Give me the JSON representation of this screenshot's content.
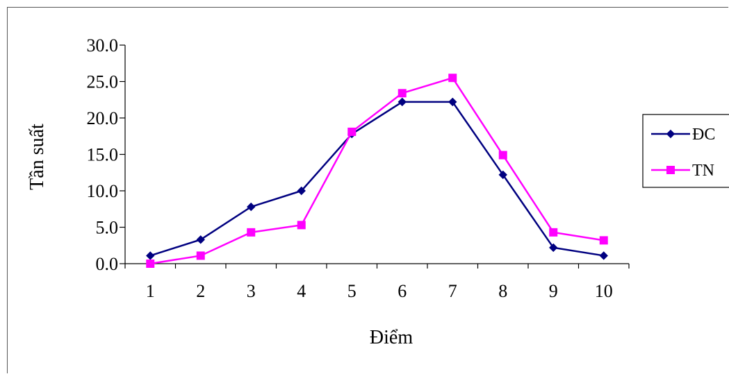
{
  "chart_data": {
    "type": "line",
    "x": [
      1,
      2,
      3,
      4,
      5,
      6,
      7,
      8,
      9,
      10
    ],
    "categories": [
      "1",
      "2",
      "3",
      "4",
      "5",
      "6",
      "7",
      "8",
      "9",
      "10"
    ],
    "series": [
      {
        "name": "ĐC",
        "values": [
          1.1,
          3.3,
          7.8,
          10.0,
          17.8,
          22.2,
          22.2,
          12.2,
          2.2,
          1.1
        ],
        "color": "#000080",
        "marker": "diamond"
      },
      {
        "name": "TN",
        "values": [
          0.0,
          1.1,
          4.3,
          5.3,
          18.1,
          23.4,
          25.5,
          14.9,
          4.3,
          3.2
        ],
        "color": "#FF00FF",
        "marker": "square"
      }
    ],
    "ylim": [
      0,
      30
    ],
    "yticks": [
      "0.0",
      "5.0",
      "10.0",
      "15.0",
      "20.0",
      "25.0",
      "30.0"
    ],
    "xlabel": "Điểm",
    "ylabel": "Tần suất",
    "grid": false,
    "legend_position": "right"
  }
}
